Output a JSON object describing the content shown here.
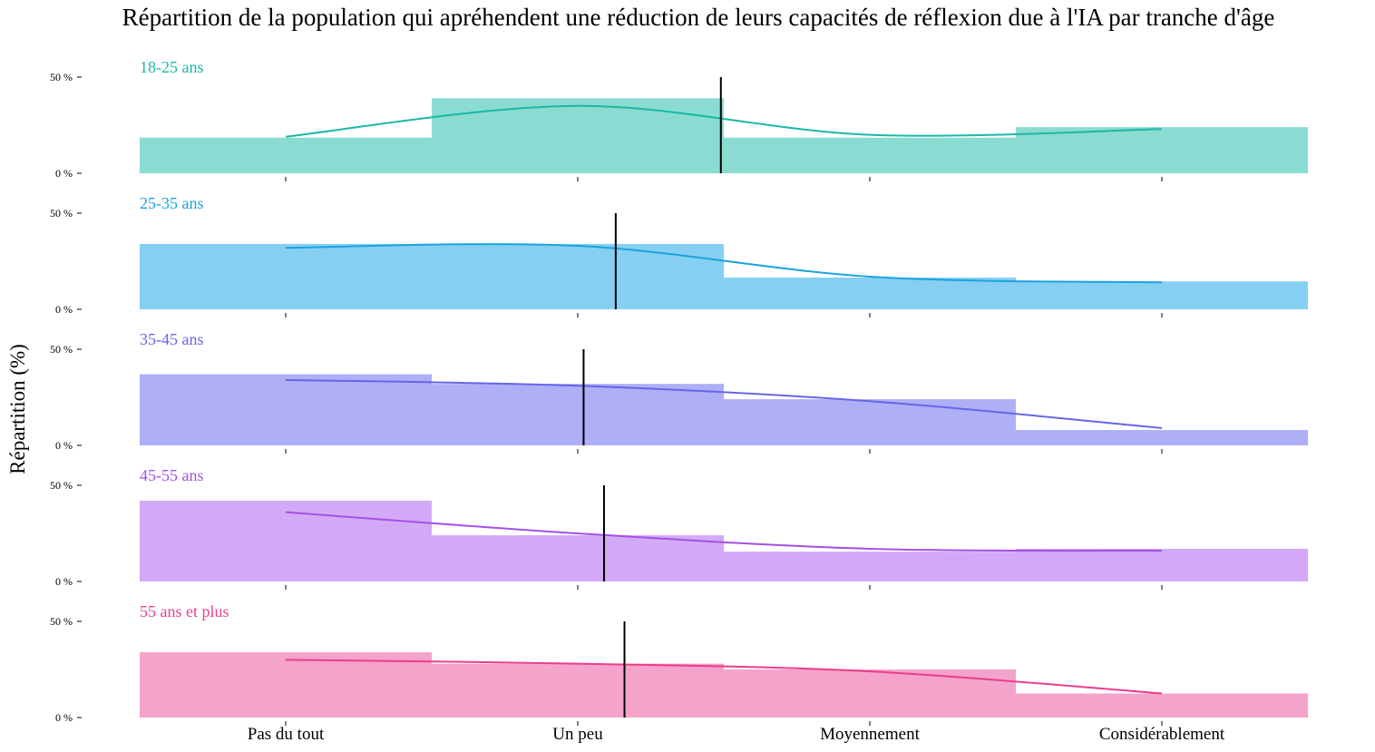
{
  "chart_data": {
    "type": "bar",
    "title": "Répartition de la population qui apréhendent une réduction de leurs capacités de réflexion due à l'IA par tranche d'âge",
    "ylabel": "Répartition (%)",
    "xlabel": "",
    "categories": [
      "Pas du tout",
      "Un peu",
      "Moyennement",
      "Considérablement"
    ],
    "yticks": [
      "0 %",
      "50 %"
    ],
    "ylim": [
      0,
      50
    ],
    "grid": false,
    "legend": "none",
    "series": [
      {
        "name": "18-25 ans",
        "color": "#1ab8a6",
        "bar_color": "#8adbd2",
        "values": [
          18.5,
          39,
          18.5,
          24
        ],
        "curve": [
          19,
          35,
          20,
          23
        ],
        "mean": 1.49
      },
      {
        "name": "25-35 ans",
        "color": "#1aa3e0",
        "bar_color": "#86cff2",
        "values": [
          34,
          34,
          16.5,
          14.5
        ],
        "curve": [
          32,
          33,
          17,
          14
        ],
        "mean": 1.13
      },
      {
        "name": "35-45 ans",
        "color": "#6566e8",
        "bar_color": "#afaff6",
        "values": [
          37,
          32,
          24,
          8
        ],
        "curve": [
          34,
          31,
          23,
          9
        ],
        "mean": 1.02
      },
      {
        "name": "45-55 ans",
        "color": "#a54fe6",
        "bar_color": "#d3a9f7",
        "values": [
          42,
          24,
          15.5,
          17
        ],
        "curve": [
          36,
          25,
          17,
          16
        ],
        "mean": 1.09
      },
      {
        "name": "55 ans et plus",
        "color": "#ea3e8c",
        "bar_color": "#f4a3cb",
        "values": [
          34,
          28,
          25,
          12.5
        ],
        "curve": [
          30,
          28,
          24,
          12.5
        ],
        "mean": 1.16
      }
    ]
  }
}
